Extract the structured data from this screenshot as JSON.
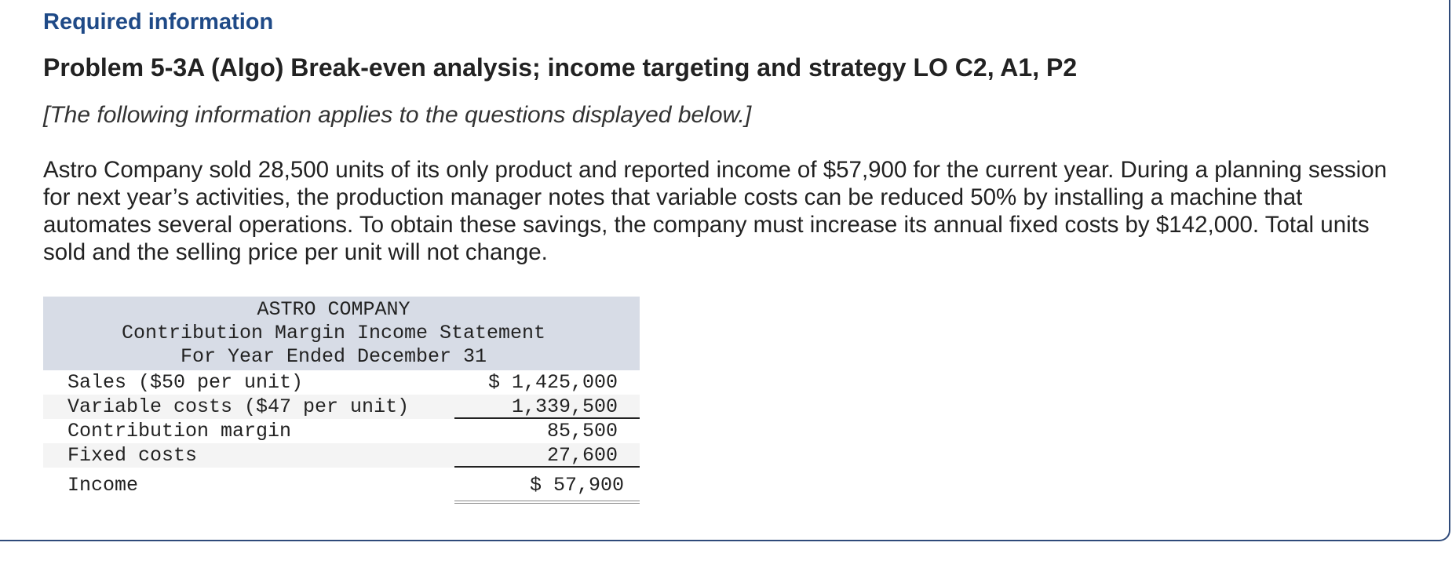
{
  "header": {
    "label": "Required information",
    "title": "Problem 5-3A (Algo) Break-even analysis; income targeting and strategy LO C2, A1, P2",
    "note": "[The following information applies to the questions displayed below.]"
  },
  "paragraph": "Astro Company sold 28,500 units of its only product and reported income of $57,900 for the current year. During a planning session for next year’s activities, the production manager notes that variable costs can be reduced 50% by installing a machine that automates several operations. To obtain these savings, the company must increase its annual fixed costs by $142,000. Total units sold and the selling price per unit will not change.",
  "table": {
    "title": [
      "ASTRO COMPANY",
      "Contribution Margin Income Statement",
      "For Year Ended December 31"
    ],
    "rows": [
      [
        "Sales ($50 per unit)",
        "$ 1,425,000"
      ],
      [
        "Variable costs ($47 per unit)",
        "1,339,500"
      ],
      [
        "Contribution margin",
        "85,500"
      ],
      [
        "Fixed costs",
        "27,600"
      ],
      [
        "Income",
        "$ 57,900"
      ]
    ]
  }
}
